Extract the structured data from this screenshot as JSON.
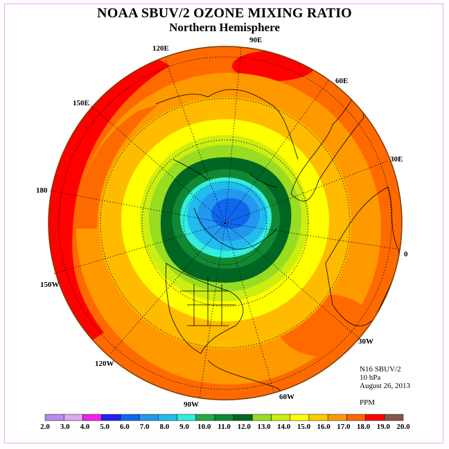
{
  "title": "NOAA SBUV/2 OZONE MIXING RATIO",
  "subtitle": "Northern Hemisphere",
  "longitude_labels": {
    "lon_90E": "90E",
    "lon_60E": "60E",
    "lon_30E": "30E",
    "lon_0": "0",
    "lon_30W": "30W",
    "lon_60W": "60W",
    "lon_90W": "90W",
    "lon_120W": "120W",
    "lon_150W": "150W",
    "lon_180": "180",
    "lon_150E": "150E",
    "lon_120E": "120E"
  },
  "info": {
    "instrument": "N16 SBUV/2",
    "level": "10 hPa",
    "date": "August 26, 2013",
    "units": "PPM"
  },
  "colorbar": {
    "ticks": [
      "2.0",
      "3.0",
      "4.0",
      "5.0",
      "6.0",
      "7.0",
      "8.0",
      "9.0",
      "10.0",
      "11.0",
      "12.0",
      "13.0",
      "14.0",
      "15.0",
      "16.0",
      "17.0",
      "18.0",
      "19.0",
      "20.0"
    ],
    "colors": [
      "#bb88ee",
      "#ddaaee",
      "#ee22ee",
      "#2222ee",
      "#1166ee",
      "#2299ee",
      "#22bbee",
      "#33eedd",
      "#22aa44",
      "#118833",
      "#006622",
      "#99dd22",
      "#ccee11",
      "#ffff00",
      "#ffcc00",
      "#ff9900",
      "#ff6600",
      "#ff0000",
      "#885544"
    ]
  }
}
